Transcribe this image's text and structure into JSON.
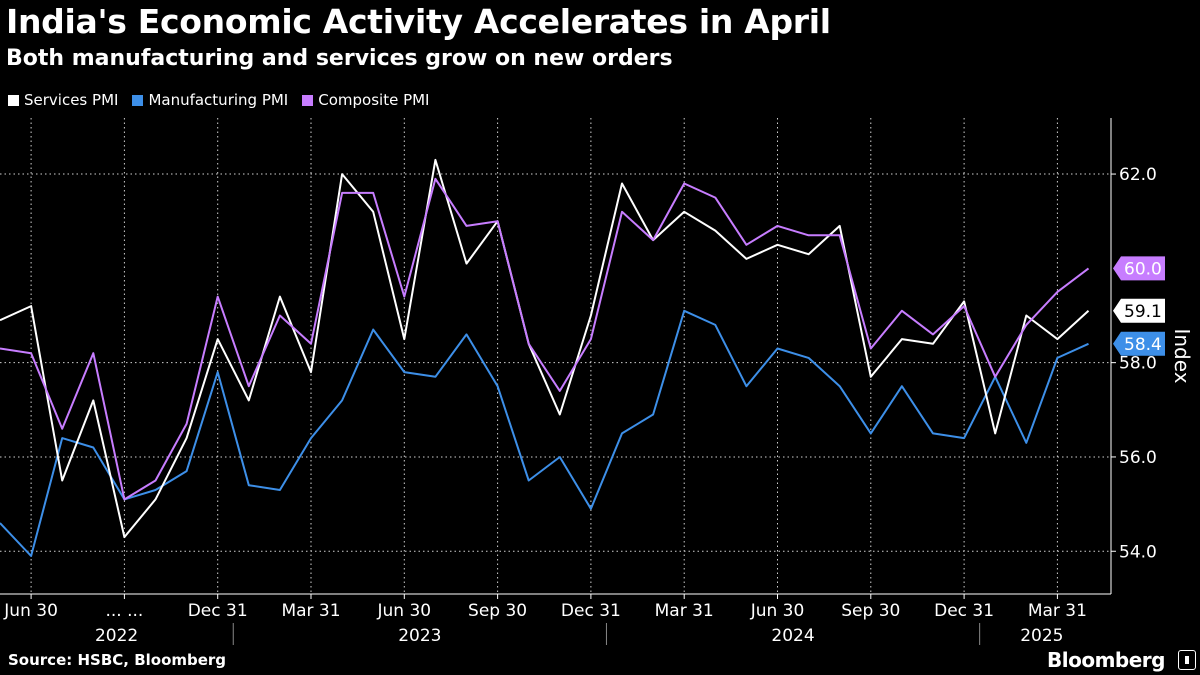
{
  "header": {
    "title": "India's Economic Activity Accelerates in April",
    "subtitle": "Both manufacturing and services grow on new orders"
  },
  "legend": [
    {
      "label": "Services PMI",
      "color": "#ffffff"
    },
    {
      "label": "Manufacturing PMI",
      "color": "#3d8fe8"
    },
    {
      "label": "Composite PMI",
      "color": "#c77dff"
    }
  ],
  "footer": {
    "source": "Source: HSBC, Bloomberg",
    "brand": "Bloomberg"
  },
  "chart_data": {
    "type": "line",
    "x": [
      "2022-05",
      "2022-06",
      "2022-07",
      "2022-08",
      "2022-09",
      "2022-10",
      "2022-11",
      "2022-12",
      "2023-01",
      "2023-02",
      "2023-03",
      "2023-04",
      "2023-05",
      "2023-06",
      "2023-07",
      "2023-08",
      "2023-09",
      "2023-10",
      "2023-11",
      "2023-12",
      "2024-01",
      "2024-02",
      "2024-03",
      "2024-04",
      "2024-05",
      "2024-06",
      "2024-07",
      "2024-08",
      "2024-09",
      "2024-10",
      "2024-11",
      "2024-12",
      "2025-01",
      "2025-02",
      "2025-03",
      "2025-04"
    ],
    "series": [
      {
        "name": "Services PMI",
        "color": "#ffffff",
        "values": [
          58.9,
          59.2,
          55.5,
          57.2,
          54.3,
          55.1,
          56.4,
          58.5,
          57.2,
          59.4,
          57.8,
          62.0,
          61.2,
          58.5,
          62.3,
          60.1,
          61.0,
          58.4,
          56.9,
          59.0,
          61.8,
          60.6,
          61.2,
          60.8,
          60.2,
          60.5,
          60.3,
          60.9,
          57.7,
          58.5,
          58.4,
          59.3,
          56.5,
          59.0,
          58.5,
          59.1
        ]
      },
      {
        "name": "Manufacturing PMI",
        "color": "#3d8fe8",
        "values": [
          54.6,
          53.9,
          56.4,
          56.2,
          55.1,
          55.3,
          55.7,
          57.8,
          55.4,
          55.3,
          56.4,
          57.2,
          58.7,
          57.8,
          57.7,
          58.6,
          57.5,
          55.5,
          56.0,
          54.9,
          56.5,
          56.9,
          59.1,
          58.8,
          57.5,
          58.3,
          58.1,
          57.5,
          56.5,
          57.5,
          56.5,
          56.4,
          57.7,
          56.3,
          58.1,
          58.4
        ]
      },
      {
        "name": "Composite PMI",
        "color": "#c77dff",
        "values": [
          58.3,
          58.2,
          56.6,
          58.2,
          55.1,
          55.5,
          56.7,
          59.4,
          57.5,
          59.0,
          58.4,
          61.6,
          61.6,
          59.4,
          61.9,
          60.9,
          61.0,
          58.4,
          57.4,
          58.5,
          61.2,
          60.6,
          61.8,
          61.5,
          60.5,
          60.9,
          60.7,
          60.7,
          58.3,
          59.1,
          58.6,
          59.2,
          57.7,
          58.8,
          59.5,
          60.0
        ]
      }
    ],
    "end_labels": [
      {
        "series": "Composite PMI",
        "text": "60.0"
      },
      {
        "series": "Services PMI",
        "text": "59.1"
      },
      {
        "series": "Manufacturing PMI",
        "text": "58.4"
      }
    ],
    "x_ticks": [
      {
        "index": 1,
        "label": "Jun 30"
      },
      {
        "index": 4,
        "label": "... ..."
      },
      {
        "index": 7,
        "label": "Dec 31"
      },
      {
        "index": 10,
        "label": "Mar 31"
      },
      {
        "index": 13,
        "label": "Jun 30"
      },
      {
        "index": 16,
        "label": "Sep 30"
      },
      {
        "index": 19,
        "label": "Dec 31"
      },
      {
        "index": 22,
        "label": "Mar 31"
      },
      {
        "index": 25,
        "label": "Jun 30"
      },
      {
        "index": 28,
        "label": "Sep 30"
      },
      {
        "index": 31,
        "label": "Dec 31"
      },
      {
        "index": 34,
        "label": "Mar 31"
      }
    ],
    "years": [
      {
        "label": "2022",
        "from": 0,
        "to": 7.5
      },
      {
        "label": "2023",
        "from": 7.5,
        "to": 19.5
      },
      {
        "label": "2024",
        "from": 19.5,
        "to": 31.5
      },
      {
        "label": "2025",
        "from": 31.5,
        "to": 35.5
      }
    ],
    "y_ticks": [
      "54.0",
      "56.0",
      "58.0",
      "62.0"
    ],
    "ylabel": "Index",
    "ylim": [
      53,
      63
    ],
    "grid": true,
    "legend_position": "top-left"
  }
}
